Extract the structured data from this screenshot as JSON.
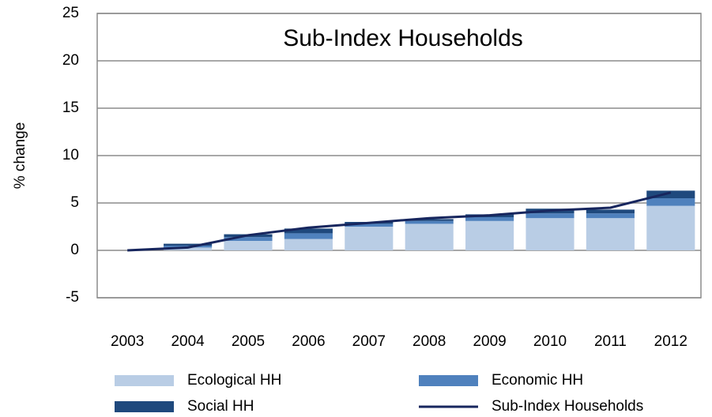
{
  "chart_data": {
    "type": "bar",
    "stacked": true,
    "title": "Sub-Index Households",
    "y_label": "% change",
    "categories": [
      "2003",
      "2004",
      "2005",
      "2006",
      "2007",
      "2008",
      "2009",
      "2010",
      "2011",
      "2012"
    ],
    "series": [
      {
        "name": "Ecological HH",
        "type": "bar",
        "color": "#b9cde5",
        "values": [
          0,
          0.3,
          1.0,
          1.2,
          2.5,
          2.8,
          3.1,
          3.4,
          3.4,
          4.7
        ]
      },
      {
        "name": "Economic HH",
        "type": "bar",
        "color": "#4f81bd",
        "values": [
          0,
          0.2,
          0.4,
          0.6,
          0.3,
          0.3,
          0.4,
          0.5,
          0.5,
          0.8
        ]
      },
      {
        "name": "Social HH",
        "type": "bar",
        "color": "#1f497d",
        "values": [
          0,
          0.2,
          0.3,
          0.5,
          0.2,
          0.2,
          0.3,
          0.5,
          0.4,
          0.8
        ]
      },
      {
        "name": "Sub-Index  Households",
        "type": "line",
        "color": "#17265e",
        "values": [
          0,
          0.3,
          1.6,
          2.4,
          2.9,
          3.4,
          3.7,
          4.2,
          4.5,
          6.1
        ]
      }
    ],
    "ylim": [
      -5,
      25
    ],
    "yticks": [
      -5,
      0,
      5,
      10,
      15,
      20,
      25
    ],
    "grid": true,
    "legend": "bottom"
  }
}
